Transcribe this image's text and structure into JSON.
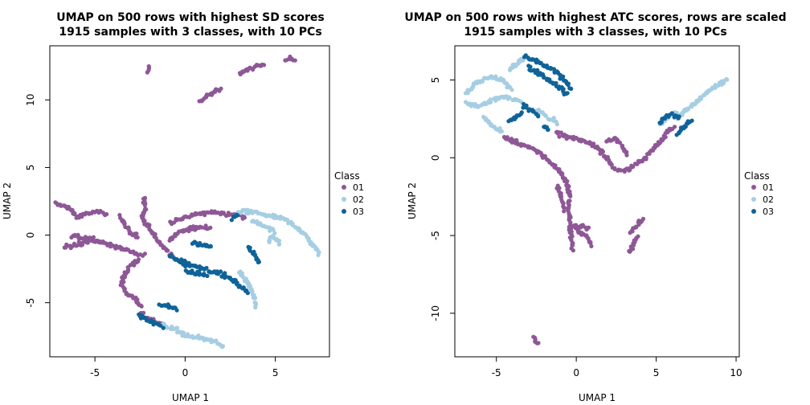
{
  "colors": {
    "01": "#8E5796",
    "02": "#A6CEE3",
    "03": "#0F6398",
    "frame": "#000000"
  },
  "chart_data": [
    {
      "type": "scatter",
      "title": "UMAP on 500 rows with highest SD scores",
      "subtitle": "1915 samples with 3 classes, with 10 PCs",
      "xlabel": "UMAP 1",
      "ylabel": "UMAP 2",
      "xlim": [
        -7.5,
        8.0
      ],
      "ylim": [
        -9.0,
        14.0
      ],
      "xticks": [
        -5,
        0,
        5
      ],
      "yticks": [
        -5,
        0,
        5,
        10
      ],
      "legend": {
        "title": "Class",
        "position": "right",
        "entries": [
          "01",
          "02",
          "03"
        ]
      },
      "series": [
        {
          "name": "01",
          "paths": [
            [
              [
                -7.2,
                2.3
              ],
              [
                -6.5,
                2.1
              ],
              [
                -6.0,
                1.3
              ],
              [
                -5.5,
                1.6
              ],
              [
                -5.0,
                1.7
              ],
              [
                -4.3,
                1.6
              ]
            ],
            [
              [
                -6.7,
                -0.9
              ],
              [
                -6.0,
                -0.7
              ],
              [
                -5.3,
                -0.4
              ],
              [
                -4.6,
                -0.5
              ],
              [
                -4.0,
                -0.8
              ],
              [
                -3.4,
                -1.1
              ],
              [
                -2.8,
                -1.4
              ],
              [
                -2.2,
                -1.5
              ]
            ],
            [
              [
                -6.3,
                0.0
              ],
              [
                -5.6,
                -0.2
              ],
              [
                -4.9,
                -0.3
              ]
            ],
            [
              [
                -3.6,
                1.4
              ],
              [
                -3.3,
                0.7
              ],
              [
                -3.0,
                0.2
              ],
              [
                -2.6,
                -0.2
              ]
            ],
            [
              [
                -2.3,
                2.8
              ],
              [
                -2.2,
                2.0
              ],
              [
                -2.4,
                1.3
              ],
              [
                -2.1,
                0.8
              ],
              [
                -1.9,
                0.3
              ],
              [
                -1.5,
                -0.4
              ],
              [
                -1.0,
                -1.2
              ],
              [
                -0.6,
                -1.6
              ]
            ],
            [
              [
                -0.8,
                0.9
              ],
              [
                -0.2,
                1.2
              ],
              [
                0.4,
                1.5
              ],
              [
                1.0,
                1.6
              ],
              [
                1.6,
                1.7
              ],
              [
                2.2,
                1.6
              ],
              [
                2.8,
                1.5
              ],
              [
                3.4,
                1.2
              ]
            ],
            [
              [
                -0.9,
                -0.3
              ],
              [
                -0.3,
                0.2
              ],
              [
                0.3,
                0.5
              ],
              [
                0.9,
                0.6
              ],
              [
                1.4,
                0.5
              ]
            ],
            [
              [
                -2.6,
                -1.8
              ],
              [
                -3.1,
                -2.4
              ],
              [
                -3.4,
                -3.1
              ],
              [
                -3.5,
                -3.8
              ],
              [
                -3.2,
                -4.3
              ],
              [
                -2.7,
                -4.8
              ],
              [
                -2.4,
                -5.4
              ]
            ],
            [
              [
                -2.5,
                -5.8
              ],
              [
                -2.1,
                -6.1
              ],
              [
                -1.7,
                -6.4
              ],
              [
                -1.3,
                -6.6
              ]
            ],
            [
              [
                -2.0,
                12.5
              ],
              [
                -2.05,
                12.0
              ]
            ],
            [
              [
                0.8,
                9.9
              ],
              [
                1.2,
                10.2
              ],
              [
                1.6,
                10.6
              ],
              [
                2.0,
                10.9
              ]
            ],
            [
              [
                3.0,
                11.9
              ],
              [
                3.5,
                12.2
              ],
              [
                4.0,
                12.5
              ],
              [
                4.4,
                12.6
              ]
            ],
            [
              [
                5.6,
                13.0
              ],
              [
                5.85,
                13.05
              ],
              [
                6.1,
                12.9
              ]
            ]
          ]
        },
        {
          "name": "02",
          "paths": [
            [
              [
                2.9,
                1.7
              ],
              [
                3.8,
                1.7
              ],
              [
                4.8,
                1.4
              ],
              [
                5.6,
                1.1
              ],
              [
                6.3,
                0.5
              ],
              [
                6.9,
                -0.4
              ],
              [
                7.5,
                -1.5
              ]
            ],
            [
              [
                3.7,
                1.1
              ],
              [
                4.4,
                0.7
              ],
              [
                5.0,
                0.2
              ]
            ],
            [
              [
                4.6,
                -0.5
              ],
              [
                4.9,
                0.0
              ],
              [
                5.3,
                -0.8
              ]
            ],
            [
              [
                3.0,
                -2.7
              ],
              [
                3.5,
                -3.6
              ],
              [
                3.8,
                -4.4
              ],
              [
                3.9,
                -5.4
              ]
            ],
            [
              [
                -0.8,
                -6.8
              ],
              [
                0.0,
                -7.4
              ],
              [
                0.8,
                -7.6
              ],
              [
                1.6,
                -7.9
              ],
              [
                2.2,
                -8.3
              ]
            ],
            [
              [
                -1.2,
                -6.6
              ],
              [
                -0.9,
                -6.9
              ]
            ]
          ]
        },
        {
          "name": "03",
          "paths": [
            [
              [
                -0.2,
                -2.1
              ],
              [
                0.3,
                -2.2
              ],
              [
                0.9,
                -2.4
              ],
              [
                1.5,
                -2.7
              ],
              [
                2.1,
                -2.9
              ],
              [
                2.6,
                -3.3
              ],
              [
                3.0,
                -3.7
              ],
              [
                3.5,
                -4.3
              ]
            ],
            [
              [
                0.0,
                -2.6
              ],
              [
                0.6,
                -2.8
              ],
              [
                1.2,
                -3.0
              ]
            ],
            [
              [
                -0.8,
                -1.6
              ],
              [
                -0.3,
                -1.9
              ],
              [
                0.2,
                -2.0
              ]
            ],
            [
              [
                0.4,
                -0.5
              ],
              [
                0.9,
                -0.7
              ],
              [
                1.5,
                -0.9
              ]
            ],
            [
              [
                2.6,
                1.3
              ],
              [
                3.0,
                1.6
              ]
            ],
            [
              [
                3.5,
                -0.9
              ],
              [
                3.9,
                -1.5
              ],
              [
                4.1,
                -2.1
              ]
            ],
            [
              [
                -2.6,
                -5.9
              ],
              [
                -2.1,
                -6.3
              ],
              [
                -1.6,
                -6.6
              ],
              [
                -1.2,
                -6.8
              ]
            ],
            [
              [
                -1.4,
                -5.1
              ],
              [
                -0.8,
                -5.3
              ],
              [
                -0.4,
                -5.6
              ]
            ]
          ]
        }
      ]
    },
    {
      "type": "scatter",
      "title": "UMAP on 500 rows with highest ATC scores, rows are scaled",
      "subtitle": "1915 samples with 3 classes, with 10 PCs",
      "xlabel": "UMAP 1",
      "ylabel": "UMAP 2",
      "xlim": [
        -7.6,
        10.2
      ],
      "ylim": [
        -12.8,
        7.2
      ],
      "xticks": [
        -5,
        0,
        5,
        10
      ],
      "yticks": [
        -10,
        -5,
        0,
        5
      ],
      "legend": {
        "title": "Class",
        "position": "right",
        "entries": [
          "01",
          "02",
          "03"
        ]
      },
      "series": [
        {
          "name": "01",
          "paths": [
            [
              [
                -4.5,
                1.3
              ],
              [
                -3.7,
                1.0
              ],
              [
                -3.0,
                0.7
              ],
              [
                -2.3,
                0.3
              ],
              [
                -1.6,
                -0.3
              ],
              [
                -1.0,
                -0.9
              ],
              [
                -0.6,
                -1.6
              ],
              [
                -0.4,
                -2.4
              ],
              [
                -0.5,
                -3.2
              ],
              [
                -0.4,
                -4.2
              ],
              [
                -0.3,
                -5.2
              ],
              [
                -0.2,
                -6.0
              ]
            ],
            [
              [
                -1.2,
                -1.8
              ],
              [
                -0.9,
                -2.6
              ],
              [
                -0.7,
                -3.4
              ]
            ],
            [
              [
                0.0,
                -4.6
              ],
              [
                0.6,
                -5.0
              ],
              [
                1.0,
                -5.7
              ]
            ],
            [
              [
                -0.3,
                -4.4
              ],
              [
                0.4,
                -4.4
              ],
              [
                0.8,
                -4.6
              ]
            ],
            [
              [
                -1.3,
                1.6
              ],
              [
                -0.5,
                1.3
              ],
              [
                0.3,
                1.1
              ],
              [
                1.0,
                0.9
              ],
              [
                1.6,
                0.4
              ],
              [
                2.1,
                -0.3
              ],
              [
                2.5,
                -0.8
              ]
            ],
            [
              [
                1.9,
                1.1
              ],
              [
                2.4,
                1.2
              ],
              [
                2.9,
                0.7
              ],
              [
                3.2,
                0.1
              ]
            ],
            [
              [
                2.6,
                -0.8
              ],
              [
                3.1,
                -0.8
              ],
              [
                3.6,
                -0.5
              ],
              [
                4.2,
                -0.1
              ],
              [
                4.8,
                0.5
              ],
              [
                5.3,
                1.1
              ],
              [
                5.7,
                1.7
              ],
              [
                6.2,
                2.1
              ]
            ],
            [
              [
                3.4,
                -4.8
              ],
              [
                3.9,
                -4.2
              ],
              [
                4.2,
                -3.8
              ]
            ],
            [
              [
                3.3,
                -6.1
              ],
              [
                3.6,
                -5.4
              ],
              [
                3.9,
                -4.9
              ]
            ],
            [
              [
                -2.7,
                -11.5
              ],
              [
                -2.5,
                -11.8
              ],
              [
                -2.3,
                -11.9
              ]
            ]
          ]
        },
        {
          "name": "02",
          "paths": [
            [
              [
                -6.9,
                4.2
              ],
              [
                -6.2,
                4.9
              ],
              [
                -5.4,
                5.2
              ],
              [
                -4.6,
                5.0
              ],
              [
                -4.0,
                4.3
              ]
            ],
            [
              [
                -6.9,
                3.5
              ],
              [
                -6.2,
                3.3
              ],
              [
                -5.5,
                3.6
              ],
              [
                -4.8,
                3.9
              ],
              [
                -4.1,
                3.8
              ],
              [
                -3.4,
                3.6
              ]
            ],
            [
              [
                -5.8,
                2.6
              ],
              [
                -5.2,
                2.0
              ],
              [
                -4.6,
                1.6
              ]
            ],
            [
              [
                -4.2,
                5.6
              ],
              [
                -3.7,
                6.1
              ],
              [
                -3.2,
                6.4
              ]
            ],
            [
              [
                -2.5,
                3.1
              ],
              [
                -1.8,
                2.6
              ],
              [
                -1.1,
                2.2
              ]
            ],
            [
              [
                6.2,
                2.5
              ],
              [
                7.0,
                3.2
              ],
              [
                7.8,
                3.9
              ],
              [
                8.6,
                4.5
              ],
              [
                9.5,
                5.1
              ]
            ],
            [
              [
                5.2,
                2.1
              ],
              [
                5.7,
                2.6
              ],
              [
                6.3,
                3.0
              ]
            ]
          ]
        },
        {
          "name": "03",
          "paths": [
            [
              [
                -3.2,
                6.5
              ],
              [
                -2.5,
                6.2
              ],
              [
                -1.8,
                5.8
              ],
              [
                -1.1,
                5.4
              ],
              [
                -0.6,
                4.9
              ],
              [
                -0.3,
                4.3
              ]
            ],
            [
              [
                -3.0,
                5.8
              ],
              [
                -2.4,
                5.5
              ],
              [
                -1.7,
                5.0
              ],
              [
                -1.0,
                4.5
              ],
              [
                -0.5,
                4.0
              ]
            ],
            [
              [
                -3.4,
                3.4
              ],
              [
                -2.9,
                3.1
              ],
              [
                -2.3,
                2.7
              ]
            ],
            [
              [
                -4.2,
                2.4
              ],
              [
                -3.7,
                2.6
              ],
              [
                -3.3,
                2.9
              ]
            ],
            [
              [
                -2.0,
                2.0
              ],
              [
                -1.6,
                1.7
              ]
            ],
            [
              [
                5.2,
                2.2
              ],
              [
                5.6,
                2.6
              ],
              [
                6.0,
                2.8
              ],
              [
                6.5,
                2.5
              ]
            ],
            [
              [
                6.3,
                1.5
              ],
              [
                6.8,
                2.0
              ],
              [
                7.2,
                2.5
              ]
            ]
          ]
        }
      ]
    }
  ]
}
